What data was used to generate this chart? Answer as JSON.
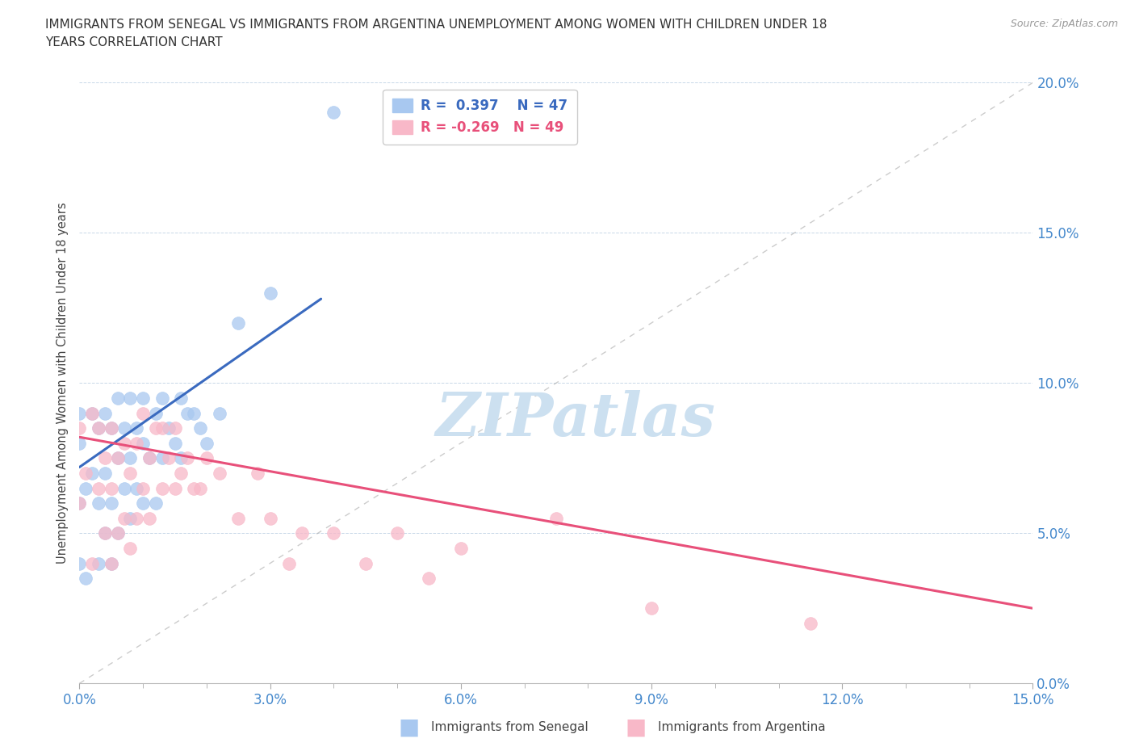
{
  "title_line1": "IMMIGRANTS FROM SENEGAL VS IMMIGRANTS FROM ARGENTINA UNEMPLOYMENT AMONG WOMEN WITH CHILDREN UNDER 18",
  "title_line2": "YEARS CORRELATION CHART",
  "source": "Source: ZipAtlas.com",
  "ylabel": "Unemployment Among Women with Children Under 18 years",
  "xlim": [
    0.0,
    0.15
  ],
  "ylim": [
    0.0,
    0.2
  ],
  "xticks": [
    0.0,
    0.03,
    0.06,
    0.09,
    0.12,
    0.15
  ],
  "yticks": [
    0.0,
    0.05,
    0.1,
    0.15,
    0.2
  ],
  "xtick_labels": [
    "0.0%",
    "3.0%",
    "6.0%",
    "9.0%",
    "12.0%",
    "15.0%"
  ],
  "ytick_labels": [
    "0.0%",
    "5.0%",
    "10.0%",
    "15.0%",
    "20.0%"
  ],
  "senegal_R": 0.397,
  "senegal_N": 47,
  "argentina_R": -0.269,
  "argentina_N": 49,
  "senegal_color": "#a8c8f0",
  "senegal_line_color": "#3a6abf",
  "argentina_color": "#f8b8c8",
  "argentina_line_color": "#e8507a",
  "watermark": "ZIPatlas",
  "watermark_color": "#cce0f0",
  "legend_label_senegal": "Immigrants from Senegal",
  "legend_label_argentina": "Immigrants from Argentina",
  "senegal_x": [
    0.0,
    0.0,
    0.0,
    0.0,
    0.001,
    0.001,
    0.002,
    0.002,
    0.003,
    0.003,
    0.003,
    0.004,
    0.004,
    0.004,
    0.005,
    0.005,
    0.005,
    0.006,
    0.006,
    0.006,
    0.007,
    0.007,
    0.008,
    0.008,
    0.008,
    0.009,
    0.009,
    0.01,
    0.01,
    0.01,
    0.011,
    0.012,
    0.012,
    0.013,
    0.013,
    0.014,
    0.015,
    0.016,
    0.016,
    0.017,
    0.018,
    0.019,
    0.02,
    0.022,
    0.025,
    0.03,
    0.04
  ],
  "senegal_y": [
    0.04,
    0.06,
    0.08,
    0.09,
    0.035,
    0.065,
    0.07,
    0.09,
    0.04,
    0.06,
    0.085,
    0.05,
    0.07,
    0.09,
    0.04,
    0.06,
    0.085,
    0.05,
    0.075,
    0.095,
    0.065,
    0.085,
    0.055,
    0.075,
    0.095,
    0.065,
    0.085,
    0.06,
    0.08,
    0.095,
    0.075,
    0.06,
    0.09,
    0.075,
    0.095,
    0.085,
    0.08,
    0.095,
    0.075,
    0.09,
    0.09,
    0.085,
    0.08,
    0.09,
    0.12,
    0.13,
    0.19
  ],
  "argentina_x": [
    0.0,
    0.0,
    0.001,
    0.002,
    0.002,
    0.003,
    0.003,
    0.004,
    0.004,
    0.005,
    0.005,
    0.005,
    0.006,
    0.006,
    0.007,
    0.007,
    0.008,
    0.008,
    0.009,
    0.009,
    0.01,
    0.01,
    0.011,
    0.011,
    0.012,
    0.013,
    0.013,
    0.014,
    0.015,
    0.015,
    0.016,
    0.017,
    0.018,
    0.019,
    0.02,
    0.022,
    0.025,
    0.028,
    0.03,
    0.033,
    0.035,
    0.04,
    0.045,
    0.05,
    0.055,
    0.06,
    0.075,
    0.09,
    0.115
  ],
  "argentina_y": [
    0.06,
    0.085,
    0.07,
    0.04,
    0.09,
    0.065,
    0.085,
    0.05,
    0.075,
    0.04,
    0.065,
    0.085,
    0.05,
    0.075,
    0.055,
    0.08,
    0.045,
    0.07,
    0.055,
    0.08,
    0.065,
    0.09,
    0.055,
    0.075,
    0.085,
    0.065,
    0.085,
    0.075,
    0.065,
    0.085,
    0.07,
    0.075,
    0.065,
    0.065,
    0.075,
    0.07,
    0.055,
    0.07,
    0.055,
    0.04,
    0.05,
    0.05,
    0.04,
    0.05,
    0.035,
    0.045,
    0.055,
    0.025,
    0.02
  ],
  "senegal_line_x0": 0.0,
  "senegal_line_y0": 0.072,
  "senegal_line_x1": 0.038,
  "senegal_line_y1": 0.128,
  "argentina_line_x0": 0.0,
  "argentina_line_y0": 0.082,
  "argentina_line_x1": 0.15,
  "argentina_line_y1": 0.025
}
